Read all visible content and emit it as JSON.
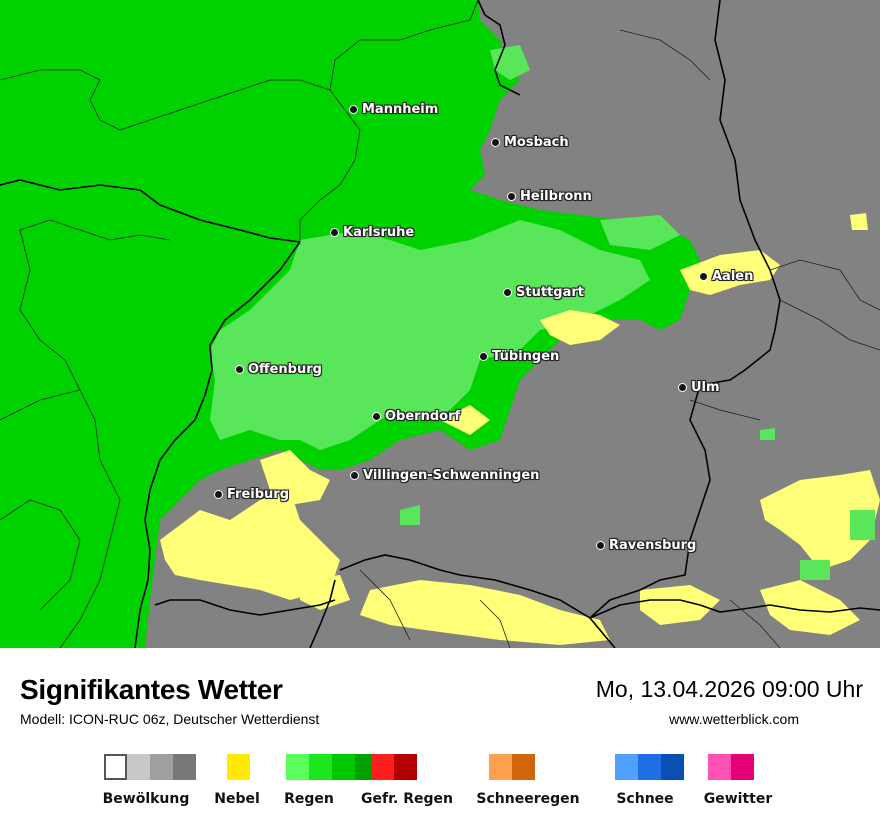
{
  "map": {
    "cities": [
      {
        "name": "Mannheim"
      },
      {
        "name": "Mosbach"
      },
      {
        "name": "Heilbronn"
      },
      {
        "name": "Karlsruhe"
      },
      {
        "name": "Aalen"
      },
      {
        "name": "Stuttgart"
      },
      {
        "name": "Tübingen"
      },
      {
        "name": "Offenburg"
      },
      {
        "name": "Ulm"
      },
      {
        "name": "Oberndorf"
      },
      {
        "name": "Villingen-Schwenningen"
      },
      {
        "name": "Freiburg"
      },
      {
        "name": "Ravensburg"
      }
    ],
    "colors": {
      "cloud": "#828282",
      "rain_strong": "#00d200",
      "rain_light": "#5ae65a",
      "fog": "#ffff78",
      "border": "#000000"
    }
  },
  "footer": {
    "title": "Signifikantes Wetter",
    "model": "Modell: ICON-RUC 06z, Deutscher Wetterdienst",
    "datetime": "Mo, 13.04.2026 09:00 Uhr",
    "website": "www.wetterblick.com"
  },
  "legend": [
    {
      "label": "Bewölkung",
      "colors": [
        "#ffffff",
        "#c8c8c8",
        "#a0a0a0",
        "#787878"
      ]
    },
    {
      "label": "Nebel",
      "colors": [
        "#ffea00"
      ]
    },
    {
      "label": "Regen",
      "colors": [
        "#5aff5a",
        "#1ee61e",
        "#00c800",
        "#00a000"
      ]
    },
    {
      "label": "Gefr. Regen",
      "colors": [
        "#ff1e1e",
        "#b40000"
      ]
    },
    {
      "label": "Schneeregen",
      "colors": [
        "#ffa050",
        "#d2640a"
      ]
    },
    {
      "label": "Schnee",
      "colors": [
        "#50a0ff",
        "#1e6ee6",
        "#0a50b4"
      ]
    },
    {
      "label": "Gewitter",
      "colors": [
        "#ff50b4",
        "#e60078"
      ]
    }
  ]
}
